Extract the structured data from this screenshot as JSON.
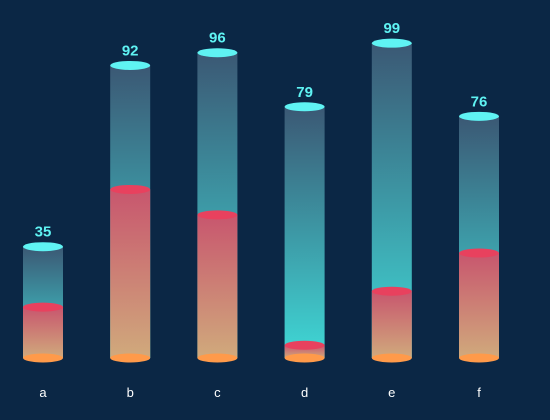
{
  "chart_data": {
    "type": "bar",
    "categories": [
      "a",
      "b",
      "c",
      "d",
      "e",
      "f"
    ],
    "series": [
      {
        "values": [
          35,
          92,
          96,
          79,
          99,
          76
        ]
      },
      {
        "values": [
          16,
          53,
          45,
          4,
          21,
          33
        ]
      }
    ],
    "ylim": [
      0,
      100
    ],
    "grid": false,
    "legend": "none",
    "colors": {
      "background": "#0b2745",
      "top_cap": "#5ff3f3",
      "inner_cap": "#e8415e",
      "base_cap": "#ff9a4a",
      "total_gradient_top": "#3b5874",
      "total_gradient_bottom": "#3fd8d6",
      "inner_gradient_top": "#c8566e",
      "inner_gradient_bottom": "#d0aa7c",
      "value_label": "#5ff3f3",
      "category_label": "#ffffff"
    }
  }
}
